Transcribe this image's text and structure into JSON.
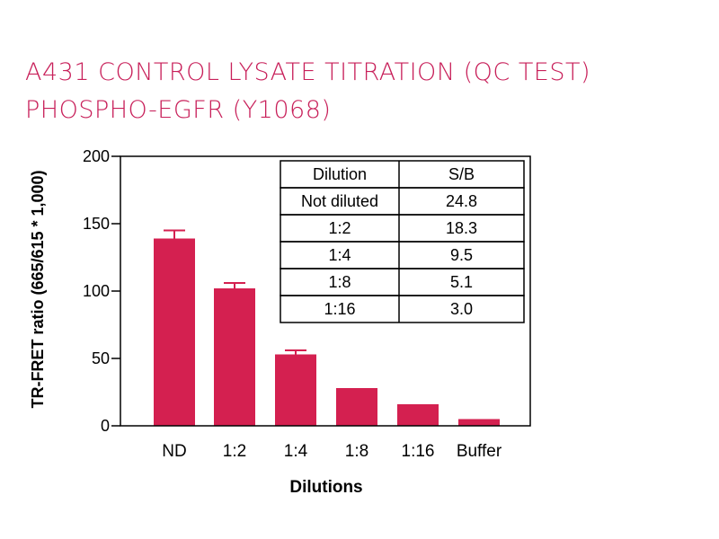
{
  "chart_data": {
    "type": "bar",
    "title": "A431 CONTROL LYSATE TITRATION (QC TEST)",
    "subtitle": "PHOSPHO-EGFR (Y1068)",
    "xlabel": "Dilutions",
    "ylabel": "TR-FRET ratio (665/615 * 1,000)",
    "categories": [
      "ND",
      "1:2",
      "1:4",
      "1:8",
      "1:16",
      "Buffer"
    ],
    "values": [
      139,
      102,
      53,
      28,
      16,
      5
    ],
    "errors": [
      6,
      4,
      3,
      null,
      null,
      null
    ],
    "ylim": [
      0,
      200
    ],
    "yticks": [
      0,
      50,
      100,
      150,
      200
    ],
    "bar_color": "#d42050",
    "grid": false,
    "table": {
      "headers": [
        "Dilution",
        "S/B"
      ],
      "rows": [
        [
          "Not diluted",
          "24.8"
        ],
        [
          "1:2",
          "18.3"
        ],
        [
          "1:4",
          "9.5"
        ],
        [
          "1:8",
          "5.1"
        ],
        [
          "1:16",
          "3.0"
        ]
      ]
    }
  }
}
